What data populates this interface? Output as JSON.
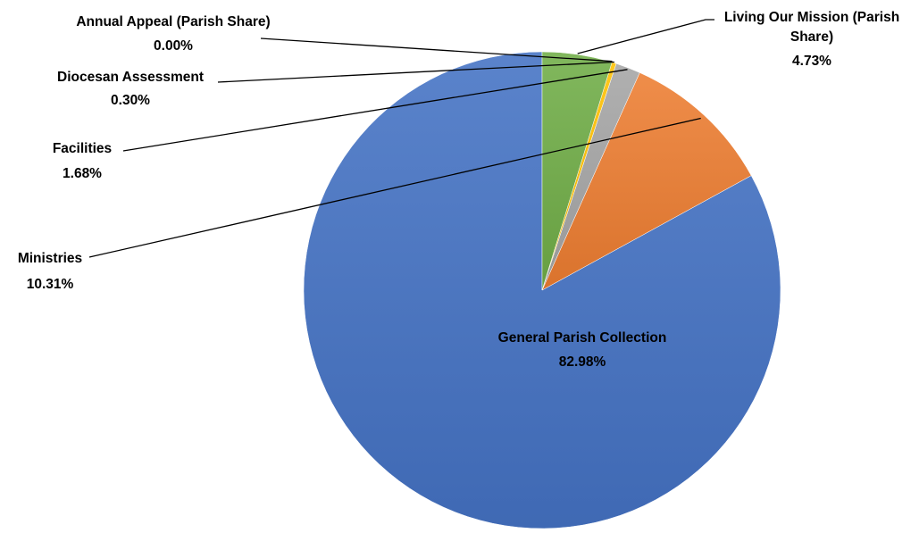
{
  "chart_data": {
    "type": "pie",
    "title": "",
    "slices": [
      {
        "name": "General Parish Collection",
        "value": 82.98,
        "label": "82.98%",
        "color": "#4472C4"
      },
      {
        "name": "Ministries",
        "value": 10.31,
        "label": "10.31%",
        "color": "#ED7D31"
      },
      {
        "name": "Facilities",
        "value": 1.68,
        "label": "1.68%",
        "color": "#A5A5A5"
      },
      {
        "name": "Diocesan Assessment",
        "value": 0.3,
        "label": "0.30%",
        "color": "#FFC000"
      },
      {
        "name": "Annual Appeal (Parish Share)",
        "value": 0.0,
        "label": "0.00%",
        "color": "#5B9BD5"
      },
      {
        "name": "Living Our Mission (Parish Share)",
        "value": 4.73,
        "label": "4.73%",
        "color": "#70AD47"
      }
    ],
    "start_angle": "12 o'clock",
    "direction": "counter-clockwise",
    "legend": "none",
    "data_labels": "category name and percentage"
  }
}
